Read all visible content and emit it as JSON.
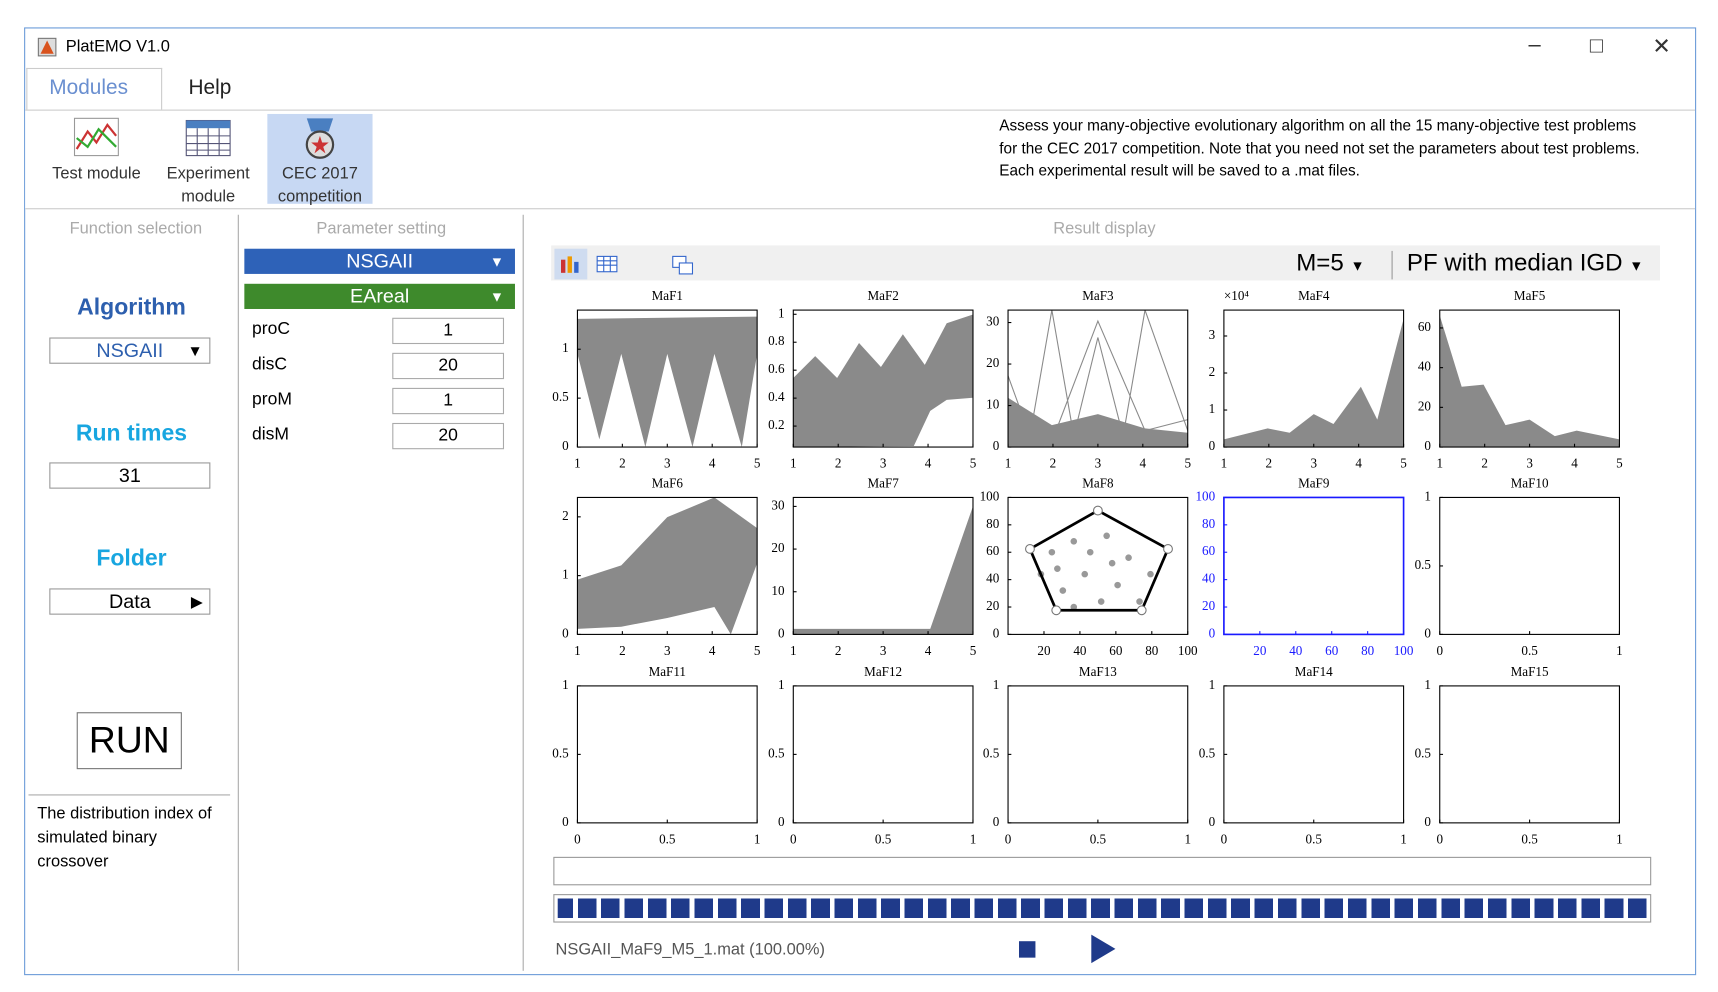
{
  "window": {
    "title": "PlatEMO V1.0"
  },
  "menu": [
    "Modules",
    "Help"
  ],
  "toolbar": [
    "Test module",
    "Experiment module",
    "CEC 2017 competition"
  ],
  "description": [
    "Assess your many-objective evolutionary algorithm on all the 15 many-objective test problems",
    "for the CEC 2017 competition. Note that you need not set the parameters about test problems.",
    "Each experimental result will be saved to a .mat files."
  ],
  "function_selection": {
    "heading": "Function selection",
    "algorithm_label": "Algorithm",
    "algorithm": "NSGAII",
    "run_times_label": "Run times",
    "run_times": "31",
    "folder_label": "Folder",
    "folder": "Data",
    "run": "RUN",
    "help": "The distribution index of simulated binary crossover"
  },
  "parameter_setting": {
    "heading": "Parameter setting",
    "algorithm": "NSGAII",
    "operator": "EAreal",
    "params": [
      {
        "name": "proC",
        "value": "1"
      },
      {
        "name": "disC",
        "value": "20"
      },
      {
        "name": "proM",
        "value": "1"
      },
      {
        "name": "disM",
        "value": "20"
      }
    ]
  },
  "result_display": {
    "heading": "Result display",
    "objectives": "M=5",
    "view": "PF with median IGD",
    "status": "NSGAII_MaF9_M5_1.mat (100.00%)",
    "plots": [
      {
        "title": "MaF1",
        "xlim": [
          1,
          5
        ],
        "xticks": [
          1,
          2,
          3,
          4,
          5
        ],
        "ylim": [
          0,
          1.4
        ],
        "yticks": [
          0,
          0.5,
          1
        ]
      },
      {
        "title": "MaF2",
        "xlim": [
          1,
          5
        ],
        "xticks": [
          1,
          2,
          3,
          4,
          5
        ],
        "ylim": [
          0.05,
          1.03
        ],
        "yticks": [
          0.2,
          0.4,
          0.6,
          0.8,
          1
        ]
      },
      {
        "title": "MaF3",
        "xlim": [
          1,
          5
        ],
        "xticks": [
          1,
          2,
          3,
          4,
          5
        ],
        "ylim": [
          0,
          33
        ],
        "yticks": [
          0,
          10,
          20,
          30
        ]
      },
      {
        "title": "MaF4",
        "xlim": [
          1,
          5
        ],
        "xticks": [
          1,
          2,
          3,
          4,
          5
        ],
        "ylim": [
          0,
          3.7
        ],
        "yticks": [
          0,
          1,
          2,
          3
        ],
        "multiplier": "×10⁴"
      },
      {
        "title": "MaF5",
        "xlim": [
          1,
          5
        ],
        "xticks": [
          1,
          2,
          3,
          4,
          5
        ],
        "ylim": [
          0,
          69
        ],
        "yticks": [
          0,
          20,
          40,
          60
        ]
      },
      {
        "title": "MaF6",
        "xlim": [
          1,
          5
        ],
        "xticks": [
          1,
          2,
          3,
          4,
          5
        ],
        "ylim": [
          0,
          2.33
        ],
        "yticks": [
          0,
          1,
          2
        ]
      },
      {
        "title": "MaF7",
        "xlim": [
          1,
          5
        ],
        "xticks": [
          1,
          2,
          3,
          4,
          5
        ],
        "ylim": [
          0,
          32.1
        ],
        "yticks": [
          0,
          10,
          20,
          30
        ]
      },
      {
        "title": "MaF8",
        "xlim": [
          0,
          100
        ],
        "xticks": [
          20,
          40,
          60,
          80,
          100
        ],
        "ylim": [
          0,
          100
        ],
        "yticks": [
          0,
          20,
          40,
          60,
          80,
          100
        ]
      },
      {
        "title": "MaF9",
        "xlim": [
          0,
          100
        ],
        "xticks": [
          20,
          40,
          60,
          80,
          100
        ],
        "ylim": [
          0,
          100
        ],
        "yticks": [
          0,
          20,
          40,
          60,
          80,
          100
        ],
        "color": "#1a1aff"
      },
      {
        "title": "MaF10",
        "xlim": [
          0,
          1
        ],
        "xticks": [
          0,
          0.5,
          1
        ],
        "ylim": [
          0,
          1
        ],
        "yticks": [
          0,
          0.5,
          1
        ]
      },
      {
        "title": "MaF11",
        "xlim": [
          0,
          1
        ],
        "xticks": [
          0,
          0.5,
          1
        ],
        "ylim": [
          0,
          1
        ],
        "yticks": [
          0,
          0.5,
          1
        ]
      },
      {
        "title": "MaF12",
        "xlim": [
          0,
          1
        ],
        "xticks": [
          0,
          0.5,
          1
        ],
        "ylim": [
          0,
          1
        ],
        "yticks": [
          0,
          0.5,
          1
        ]
      },
      {
        "title": "MaF13",
        "xlim": [
          0,
          1
        ],
        "xticks": [
          0,
          0.5,
          1
        ],
        "ylim": [
          0,
          1
        ],
        "yticks": [
          0,
          0.5,
          1
        ]
      },
      {
        "title": "MaF14",
        "xlim": [
          0,
          1
        ],
        "xticks": [
          0,
          0.5,
          1
        ],
        "ylim": [
          0,
          1
        ],
        "yticks": [
          0,
          0.5,
          1
        ]
      },
      {
        "title": "MaF15",
        "xlim": [
          0,
          1
        ],
        "xticks": [
          0,
          0.5,
          1
        ],
        "ylim": [
          0,
          1
        ],
        "yticks": [
          0,
          0.5,
          1
        ]
      }
    ]
  }
}
